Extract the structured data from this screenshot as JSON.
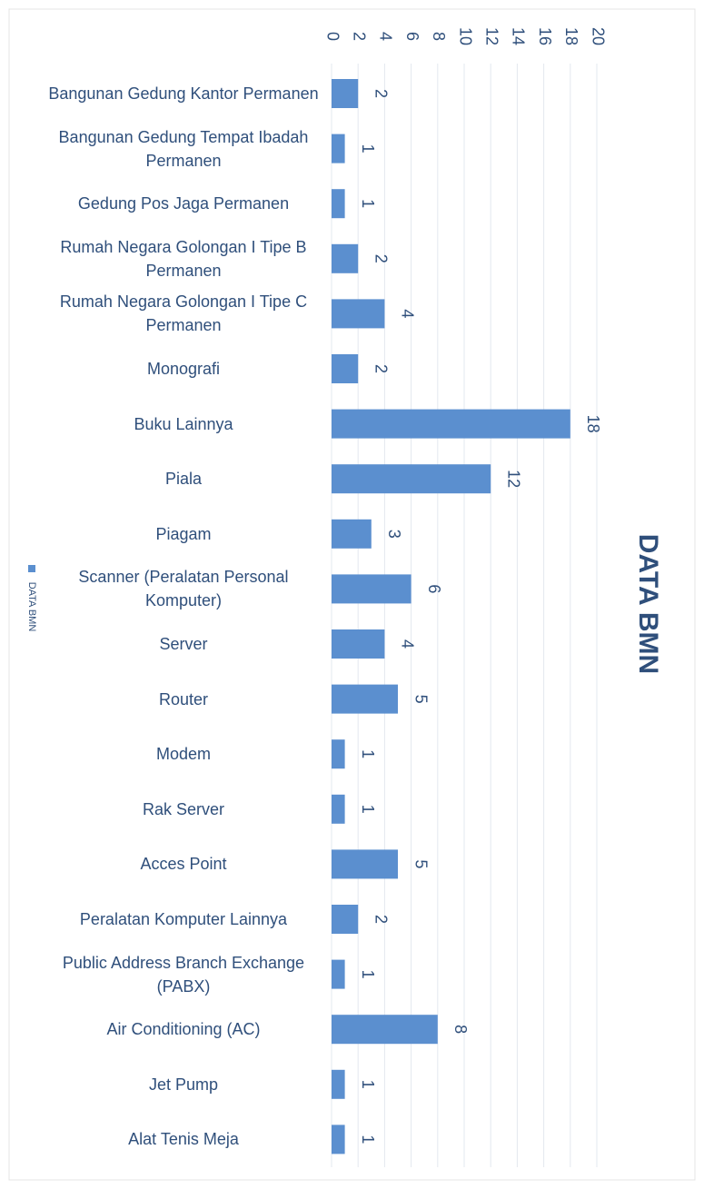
{
  "chart_data": {
    "type": "bar",
    "orientation": "horizontal",
    "title": "DATA BMN",
    "categories": [
      "Bangunan Gedung Kantor Permanen",
      "Bangunan Gedung Tempat Ibadah Permanen",
      "Gedung Pos Jaga Permanen",
      "Rumah Negara Golongan I Tipe B Permanen",
      "Rumah Negara Golongan I Tipe C Permanen",
      "Monografi",
      "Buku Lainnya",
      "Piala",
      "Piagam",
      "Scanner (Peralatan Personal Komputer)",
      "Server",
      "Router",
      "Modem",
      "Rak Server",
      "Acces Point",
      "Peralatan Komputer Lainnya",
      "Public Address Branch Exchange (PABX)",
      "Air Conditioning (AC)",
      "Jet Pump",
      "Alat Tenis Meja"
    ],
    "series": [
      {
        "name": "DATA BMN",
        "color": "#5b8fcf",
        "values": [
          2,
          1,
          1,
          2,
          4,
          2,
          18,
          12,
          3,
          6,
          4,
          5,
          1,
          1,
          5,
          2,
          1,
          8,
          1,
          1
        ]
      }
    ],
    "xlim": [
      0,
      20
    ],
    "xticks": [
      0,
      2,
      4,
      6,
      8,
      10,
      12,
      14,
      16,
      18,
      20
    ],
    "grid": true,
    "legend": "left"
  }
}
